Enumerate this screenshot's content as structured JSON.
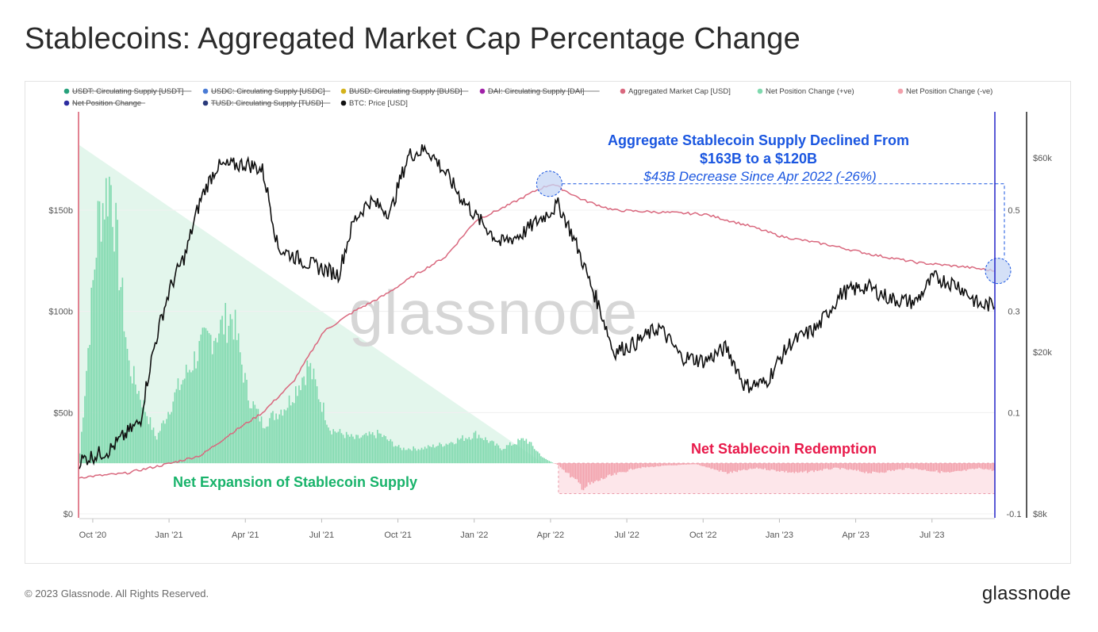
{
  "page": {
    "title": "Stablecoins: Aggregated Market Cap Percentage Change",
    "copyright": "© 2023 Glassnode. All Rights Reserved.",
    "logo": "glassnode",
    "watermark": "glassnode"
  },
  "chart_data": {
    "type": "line",
    "legend": [
      {
        "label": "USDT: Circulating Supply [USDT]",
        "color": "#26a17b",
        "hidden": true
      },
      {
        "label": "USDC: Circulating Supply [USDC]",
        "color": "#4a7bd5",
        "hidden": true
      },
      {
        "label": "BUSD: Circulating Supply [BUSD]",
        "color": "#d4b21a",
        "hidden": true
      },
      {
        "label": "DAI: Circulating Supply [DAI]",
        "color": "#a020a8",
        "hidden": true
      },
      {
        "label": "Aggregated Market Cap [USD]",
        "color": "#d9687e",
        "hidden": false
      },
      {
        "label": "Net Position Change (+ve)",
        "color": "#7fd9ae",
        "hidden": false
      },
      {
        "label": "Net Position Change (-ve)",
        "color": "#f2a0ab",
        "hidden": false
      },
      {
        "label": "Net Position Change",
        "color": "#2c2ca0",
        "hidden": true
      },
      {
        "label": "TUSD: Circulating Supply [TUSD]",
        "color": "#2a3a7a",
        "hidden": true
      },
      {
        "label": "BTC: Price [USD]",
        "color": "#111111",
        "hidden": false
      }
    ],
    "x_ticks": [
      "Oct '20",
      "Jan '21",
      "Apr '21",
      "Jul '21",
      "Oct '21",
      "Jan '22",
      "Apr '22",
      "Jul '22",
      "Oct '22",
      "Jan '23",
      "Apr '23",
      "Jul '23"
    ],
    "left_axis": {
      "ticks": [
        "$0",
        "$50b",
        "$100b",
        "$150b"
      ],
      "values": [
        0,
        50,
        100,
        150
      ]
    },
    "mid_axis": {
      "ticks": [
        "-0.1",
        "0.1",
        "0.3",
        "0.5"
      ],
      "values": [
        -0.1,
        0.1,
        0.3,
        0.5
      ]
    },
    "right_axis": {
      "ticks": [
        "$8k",
        "$20k",
        "$60k"
      ],
      "values": [
        8000,
        20000,
        60000
      ],
      "scale": "log"
    },
    "series": {
      "aggregated_market_cap_billions": [
        [
          2020.7,
          18
        ],
        [
          2020.85,
          20
        ],
        [
          2021.0,
          25
        ],
        [
          2021.1,
          29
        ],
        [
          2021.2,
          40
        ],
        [
          2021.3,
          50
        ],
        [
          2021.4,
          65
        ],
        [
          2021.5,
          90
        ],
        [
          2021.6,
          100
        ],
        [
          2021.7,
          108
        ],
        [
          2021.8,
          118
        ],
        [
          2021.9,
          127
        ],
        [
          2022.0,
          145
        ],
        [
          2022.1,
          152
        ],
        [
          2022.2,
          160
        ],
        [
          2022.25,
          163
        ],
        [
          2022.35,
          155
        ],
        [
          2022.45,
          150
        ],
        [
          2022.6,
          149
        ],
        [
          2022.75,
          148
        ],
        [
          2022.9,
          142
        ],
        [
          2023.0,
          137
        ],
        [
          2023.15,
          133
        ],
        [
          2023.3,
          128
        ],
        [
          2023.45,
          124
        ],
        [
          2023.6,
          122
        ],
        [
          2023.7,
          120
        ]
      ],
      "btc_price_usd": [
        [
          2020.7,
          10800
        ],
        [
          2020.8,
          11500
        ],
        [
          2020.9,
          13500
        ],
        [
          2021.0,
          29000
        ],
        [
          2021.05,
          35000
        ],
        [
          2021.1,
          48000
        ],
        [
          2021.15,
          57000
        ],
        [
          2021.25,
          58000
        ],
        [
          2021.3,
          56000
        ],
        [
          2021.35,
          36000
        ],
        [
          2021.45,
          33000
        ],
        [
          2021.55,
          31000
        ],
        [
          2021.6,
          42000
        ],
        [
          2021.65,
          47000
        ],
        [
          2021.72,
          44000
        ],
        [
          2021.78,
          61000
        ],
        [
          2021.84,
          63000
        ],
        [
          2021.9,
          55000
        ],
        [
          2021.95,
          48000
        ],
        [
          2022.0,
          43000
        ],
        [
          2022.08,
          37000
        ],
        [
          2022.15,
          39000
        ],
        [
          2022.22,
          43000
        ],
        [
          2022.27,
          46000
        ],
        [
          2022.32,
          38000
        ],
        [
          2022.37,
          30000
        ],
        [
          2022.45,
          20000
        ],
        [
          2022.52,
          21000
        ],
        [
          2022.6,
          23000
        ],
        [
          2022.67,
          19500
        ],
        [
          2022.75,
          19000
        ],
        [
          2022.82,
          20500
        ],
        [
          2022.88,
          16500
        ],
        [
          2022.95,
          16800
        ],
        [
          2023.03,
          21000
        ],
        [
          2023.12,
          23000
        ],
        [
          2023.2,
          28000
        ],
        [
          2023.28,
          29000
        ],
        [
          2023.36,
          27000
        ],
        [
          2023.44,
          26500
        ],
        [
          2023.5,
          30500
        ],
        [
          2023.58,
          29200
        ],
        [
          2023.65,
          26000
        ],
        [
          2023.7,
          26200
        ]
      ],
      "net_position_change": [
        [
          2020.7,
          0.02
        ],
        [
          2020.76,
          0.5
        ],
        [
          2020.8,
          0.58
        ],
        [
          2020.86,
          0.2
        ],
        [
          2020.95,
          0.05
        ],
        [
          2021.02,
          0.15
        ],
        [
          2021.1,
          0.24
        ],
        [
          2021.2,
          0.3
        ],
        [
          2021.25,
          0.14
        ],
        [
          2021.3,
          0.08
        ],
        [
          2021.38,
          0.12
        ],
        [
          2021.45,
          0.2
        ],
        [
          2021.52,
          0.07
        ],
        [
          2021.6,
          0.05
        ],
        [
          2021.68,
          0.06
        ],
        [
          2021.75,
          0.03
        ],
        [
          2021.82,
          0.03
        ],
        [
          2021.9,
          0.04
        ],
        [
          2022.0,
          0.06
        ],
        [
          2022.08,
          0.03
        ],
        [
          2022.16,
          0.05
        ],
        [
          2022.22,
          0.01
        ],
        [
          2022.27,
          -0.005
        ],
        [
          2022.35,
          -0.05
        ],
        [
          2022.42,
          -0.03
        ],
        [
          2022.52,
          -0.01
        ],
        [
          2022.62,
          -0.005
        ],
        [
          2022.72,
          -0.002
        ],
        [
          2022.82,
          -0.02
        ],
        [
          2022.92,
          -0.01
        ],
        [
          2023.05,
          -0.02
        ],
        [
          2023.18,
          -0.01
        ],
        [
          2023.3,
          -0.02
        ],
        [
          2023.42,
          -0.01
        ],
        [
          2023.55,
          -0.02
        ],
        [
          2023.65,
          -0.01
        ],
        [
          2023.7,
          -0.015
        ]
      ]
    },
    "annotations": [
      {
        "text": "Aggregate Stablecoin Supply Declined From",
        "color": "#1a56e0"
      },
      {
        "text": "$163B to a $120B",
        "color": "#1a56e0"
      },
      {
        "text": "$43B Decrease Since Apr 2022 (-26%)",
        "color": "#1a56e0",
        "style": "italic"
      },
      {
        "text": "Net Stablecoin Redemption",
        "color": "#e8194a"
      },
      {
        "text": "Net Expansion of Stablecoin Supply",
        "color": "#19b36b"
      }
    ],
    "colors": {
      "market_cap_line": "#d9687e",
      "btc_line": "#111111",
      "positive_fill": "#7fd9ae",
      "negative_fill": "#f2a0ab",
      "positive_triangle": "#e3f6ec",
      "negative_box": "#fde6ea",
      "circle_fill": "#c5d6f4",
      "circle_stroke": "#1a56e0",
      "start_line": "#d9586e",
      "end_line": "#2323c8"
    }
  }
}
